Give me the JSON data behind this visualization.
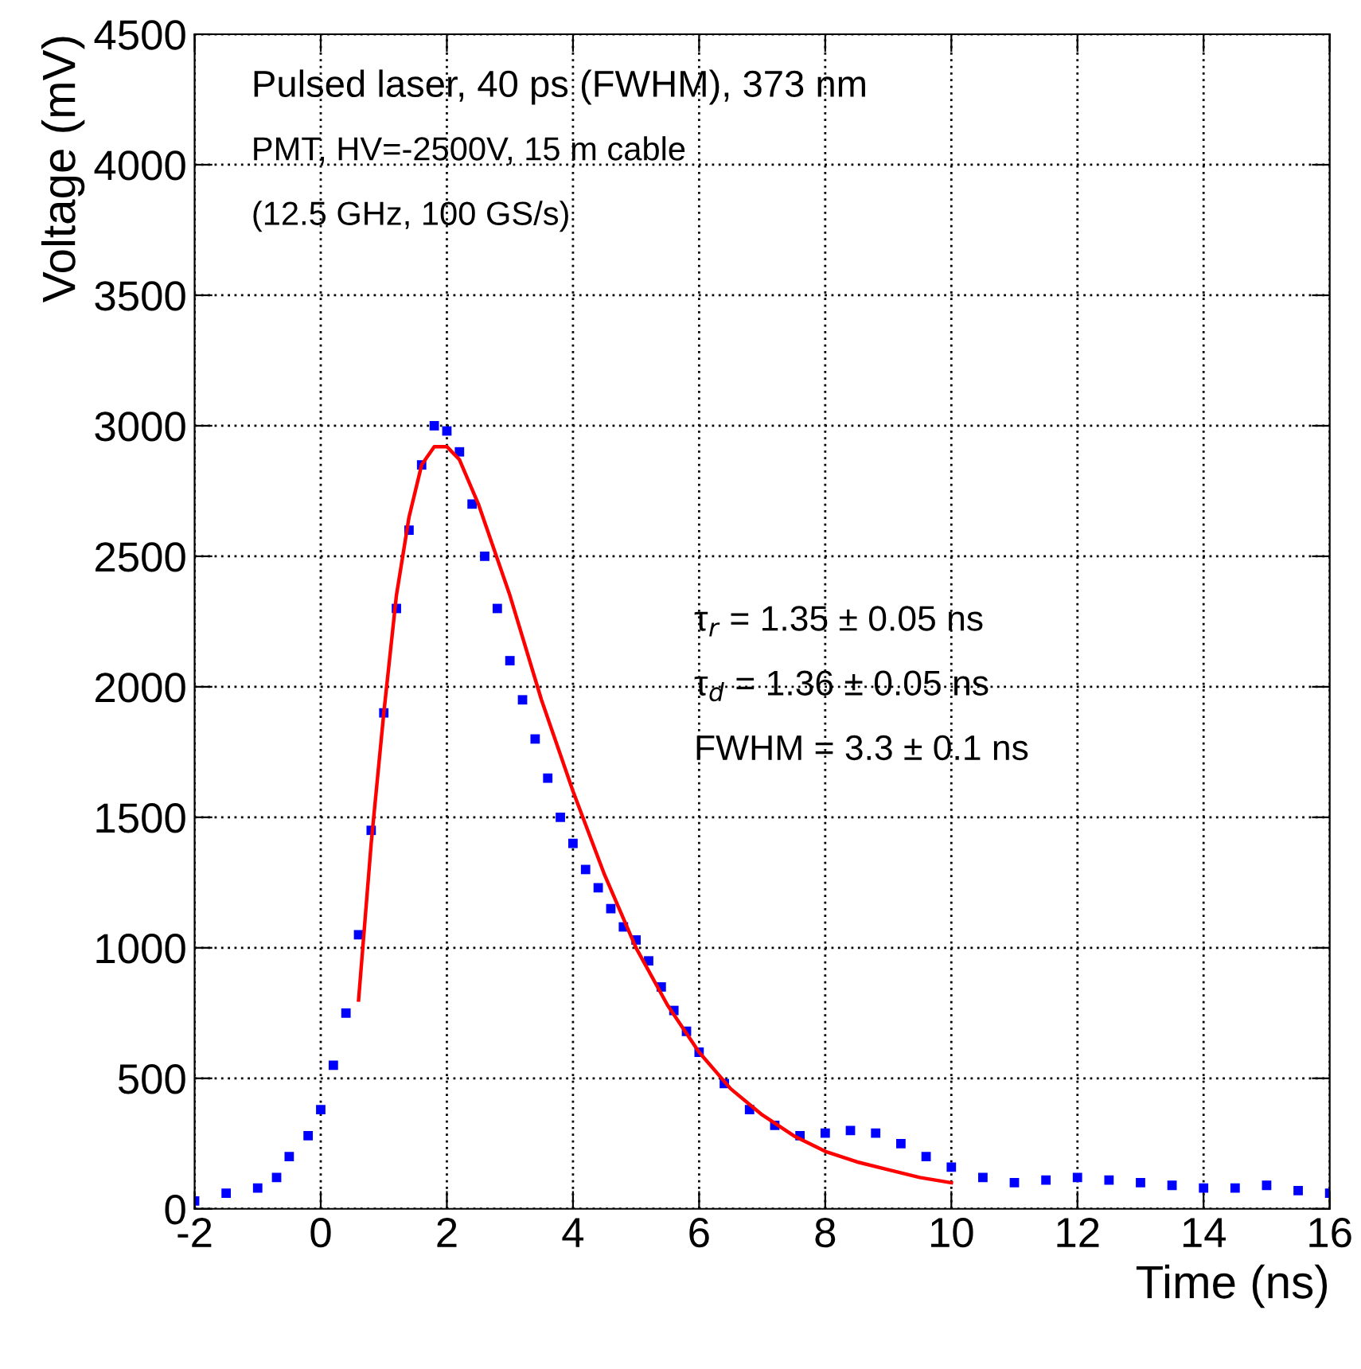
{
  "chart_data": {
    "type": "scatter",
    "xlabel": "Time (ns)",
    "ylabel": "Voltage (mV)",
    "xlim": [
      -2,
      16
    ],
    "xticks": [
      -2,
      0,
      2,
      4,
      6,
      8,
      10,
      12,
      14,
      16
    ],
    "ylim": [
      0,
      4500
    ],
    "yticks": [
      0,
      500,
      1000,
      1500,
      2000,
      2500,
      3000,
      3500,
      4000,
      4500
    ],
    "grid": true,
    "series": [
      {
        "marker": "square",
        "color": "#0000ff",
        "x": [
          -2,
          -1.5,
          -1,
          -0.7,
          -0.5,
          -0.2,
          0,
          0.2,
          0.4,
          0.6,
          0.8,
          1.0,
          1.2,
          1.4,
          1.6,
          1.8,
          2.0,
          2.2,
          2.4,
          2.6,
          2.8,
          3.0,
          3.2,
          3.4,
          3.6,
          3.8,
          4.0,
          4.2,
          4.4,
          4.6,
          4.8,
          5.0,
          5.2,
          5.4,
          5.6,
          5.8,
          6.0,
          6.4,
          6.8,
          7.2,
          7.6,
          8.0,
          8.4,
          8.8,
          9.2,
          9.6,
          10,
          10.5,
          11,
          11.5,
          12,
          12.5,
          13,
          13.5,
          14,
          14.5,
          15,
          15.5,
          16
        ],
        "values": [
          30,
          60,
          80,
          120,
          200,
          280,
          380,
          550,
          750,
          1050,
          1450,
          1900,
          2300,
          2600,
          2850,
          3000,
          2980,
          2900,
          2700,
          2500,
          2300,
          2100,
          1950,
          1800,
          1650,
          1500,
          1400,
          1300,
          1230,
          1150,
          1080,
          1030,
          950,
          850,
          760,
          680,
          600,
          480,
          380,
          320,
          280,
          290,
          300,
          290,
          250,
          200,
          160,
          120,
          100,
          110,
          120,
          110,
          100,
          90,
          80,
          80,
          90,
          70,
          60
        ]
      },
      {
        "type": "line",
        "color": "#ff0000",
        "x": [
          0.6,
          0.8,
          1.0,
          1.2,
          1.4,
          1.6,
          1.8,
          2.0,
          2.2,
          2.5,
          3,
          3.5,
          4,
          4.5,
          5,
          5.5,
          6,
          6.5,
          7,
          7.5,
          8,
          8.5,
          9,
          9.5,
          10
        ],
        "values": [
          800,
          1400,
          1900,
          2350,
          2650,
          2850,
          2920,
          2920,
          2870,
          2700,
          2350,
          1950,
          1600,
          1280,
          1000,
          780,
          600,
          460,
          360,
          280,
          220,
          180,
          150,
          120,
          100
        ]
      }
    ],
    "annotations": [
      "Pulsed laser, 40 ps (FWHM), 373 nm",
      "PMT, HV=-2500V, 15 m cable",
      "(12.5 GHz, 100 GS/s)",
      "τ$_{r}$ = 1.35 ± 0.05 ns",
      "τ$_{d}$ = 1.36 ± 0.05 ns",
      "FWHM = 3.3 ± 0.1 ns"
    ]
  }
}
